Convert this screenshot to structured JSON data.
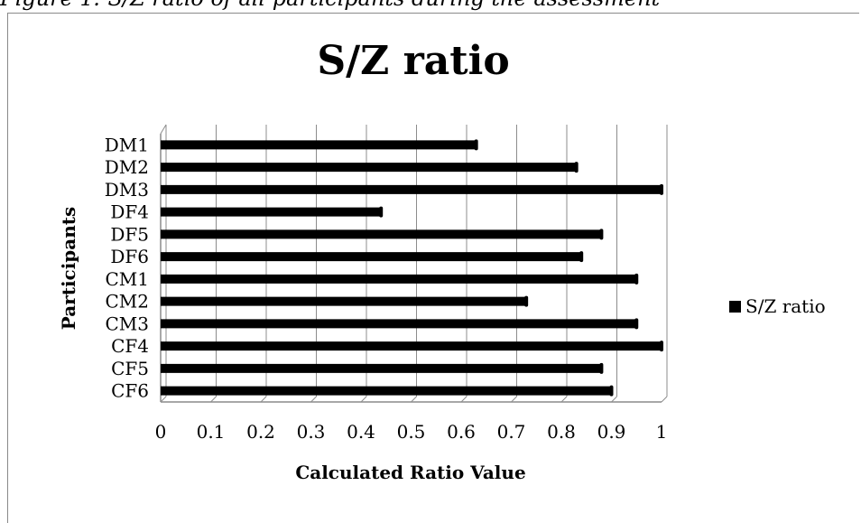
{
  "caption": "Figure 1: S/Z ratio of all participants during the assessment",
  "chart_data": {
    "type": "bar",
    "orientation": "horizontal",
    "title": "S/Z ratio",
    "xlabel": "Calculated Ratio Value",
    "ylabel": "Participants",
    "categories": [
      "DM1",
      "DM2",
      "DM3",
      "DF4",
      "DF5",
      "DF6",
      "CM1",
      "CM2",
      "CM3",
      "CF4",
      "CF5",
      "CF6"
    ],
    "series": [
      {
        "name": "S/Z ratio",
        "values": [
          0.63,
          0.83,
          1.0,
          0.44,
          0.88,
          0.84,
          0.95,
          0.73,
          0.95,
          1.0,
          0.88,
          0.9
        ]
      }
    ],
    "xlim": [
      0,
      1
    ],
    "xticks": [
      "0",
      "0.1",
      "0.2",
      "0.3",
      "0.4",
      "0.5",
      "0.6",
      "0.7",
      "0.8",
      "0.9",
      "1"
    ],
    "grid": true,
    "legend_position": "right",
    "bar_color": "#000000"
  }
}
